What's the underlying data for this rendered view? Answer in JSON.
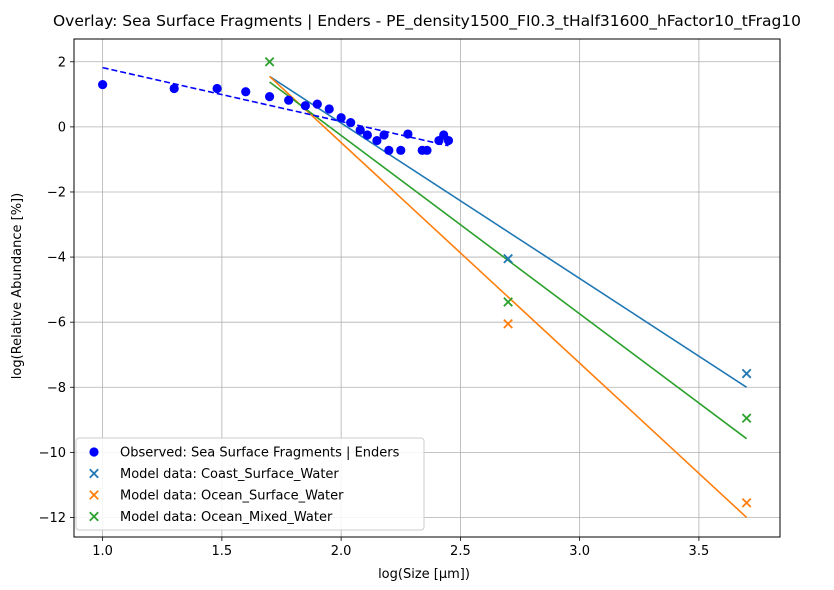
{
  "chart_data": {
    "type": "scatter",
    "title": "Overlay: Sea Surface Fragments | Enders - PE_density1500_FI0.3_tHalf31600_hFactor10_tFrag10",
    "xlabel": "log(Size [μm])",
    "ylabel": "log(Relative Abundance [%])",
    "xlim": [
      0.88,
      3.84
    ],
    "ylim": [
      -12.6,
      2.7
    ],
    "xticks": [
      1.0,
      1.5,
      2.0,
      2.5,
      3.0,
      3.5
    ],
    "xtick_labels": [
      "1.0",
      "1.5",
      "2.0",
      "2.5",
      "3.0",
      "3.5"
    ],
    "yticks": [
      2,
      0,
      -2,
      -4,
      -6,
      -8,
      -10,
      -12
    ],
    "ytick_labels": [
      "2",
      "0",
      "−2",
      "−4",
      "−6",
      "−8",
      "−10",
      "−12"
    ],
    "grid": true,
    "legend_position": "lower-left",
    "observed": {
      "name": "Observed: Sea Surface Fragments | Enders",
      "color": "#0000ff",
      "marker": "circle",
      "points": [
        [
          1.0,
          1.3
        ],
        [
          1.3,
          1.18
        ],
        [
          1.48,
          1.18
        ],
        [
          1.6,
          1.08
        ],
        [
          1.7,
          0.93
        ],
        [
          1.78,
          0.82
        ],
        [
          1.85,
          0.65
        ],
        [
          1.9,
          0.7
        ],
        [
          1.95,
          0.55
        ],
        [
          2.0,
          0.28
        ],
        [
          2.04,
          0.13
        ],
        [
          2.08,
          -0.1
        ],
        [
          2.11,
          -0.25
        ],
        [
          2.15,
          -0.42
        ],
        [
          2.18,
          -0.25
        ],
        [
          2.2,
          -0.72
        ],
        [
          2.25,
          -0.72
        ],
        [
          2.28,
          -0.22
        ],
        [
          2.34,
          -0.72
        ],
        [
          2.36,
          -0.72
        ],
        [
          2.41,
          -0.42
        ],
        [
          2.43,
          -0.25
        ],
        [
          2.45,
          -0.42
        ]
      ],
      "fit": {
        "x": [
          1.0,
          2.45
        ],
        "y": [
          1.82,
          -0.58
        ],
        "color": "#0000ff",
        "style": "dashed"
      }
    },
    "series": [
      {
        "name": "Model data: Coast_Surface_Water",
        "color": "#1f77b4",
        "marker": "x",
        "x": [
          2.7,
          3.7
        ],
        "y": [
          -4.05,
          -7.58
        ],
        "fit": {
          "x": [
            1.7,
            3.7
          ],
          "y": [
            1.55,
            -8.0
          ]
        }
      },
      {
        "name": "Model data: Ocean_Surface_Water",
        "color": "#ff7f0e",
        "marker": "x",
        "x": [
          2.7,
          3.7
        ],
        "y": [
          -6.05,
          -11.55
        ],
        "fit": {
          "x": [
            1.7,
            3.7
          ],
          "y": [
            1.55,
            -12.0
          ]
        }
      },
      {
        "name": "Model data: Ocean_Mixed_Water",
        "color": "#2ca02c",
        "marker": "x",
        "x": [
          1.7,
          2.7,
          3.7
        ],
        "y": [
          2.0,
          -5.38,
          -8.95
        ],
        "fit": {
          "x": [
            1.7,
            3.7
          ],
          "y": [
            1.38,
            -9.58
          ]
        }
      }
    ]
  }
}
